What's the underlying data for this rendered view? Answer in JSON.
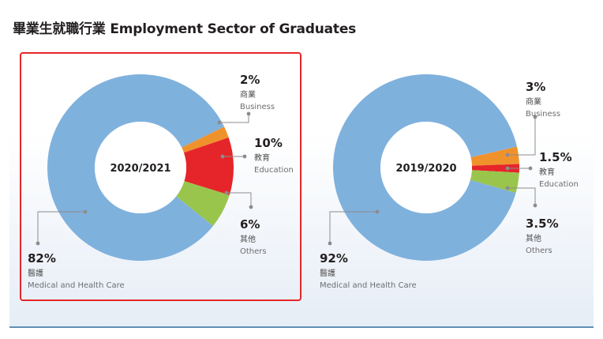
{
  "title": "畢業生就職行業  Employment Sector of Graduates",
  "colors": {
    "medical": "#7fb1dd",
    "business": "#f0922c",
    "education": "#e5252a",
    "others": "#9ac54c",
    "highlight": "#e5252a",
    "leader": "#8c8c8c"
  },
  "chart_data": [
    {
      "type": "pie",
      "center_label": "2020/2021",
      "highlighted": true,
      "slices": [
        {
          "key": "medical",
          "value": 82,
          "pct_label": "82%",
          "zh": "醫護",
          "en": "Medical and Health Care"
        },
        {
          "key": "business",
          "value": 2,
          "pct_label": "2%",
          "zh": "商業",
          "en": "Business"
        },
        {
          "key": "education",
          "value": 10,
          "pct_label": "10%",
          "zh": "教育",
          "en": "Education"
        },
        {
          "key": "others",
          "value": 6,
          "pct_label": "6%",
          "zh": "其他",
          "en": "Others"
        }
      ]
    },
    {
      "type": "pie",
      "center_label": "2019/2020",
      "highlighted": false,
      "slices": [
        {
          "key": "medical",
          "value": 92,
          "pct_label": "92%",
          "zh": "醫護",
          "en": "Medical and Health Care"
        },
        {
          "key": "business",
          "value": 3,
          "pct_label": "3%",
          "zh": "商業",
          "en": "Business"
        },
        {
          "key": "education",
          "value": 1.5,
          "pct_label": "1.5%",
          "zh": "教育",
          "en": "Education"
        },
        {
          "key": "others",
          "value": 3.5,
          "pct_label": "3.5%",
          "zh": "其他",
          "en": "Others"
        }
      ]
    }
  ]
}
